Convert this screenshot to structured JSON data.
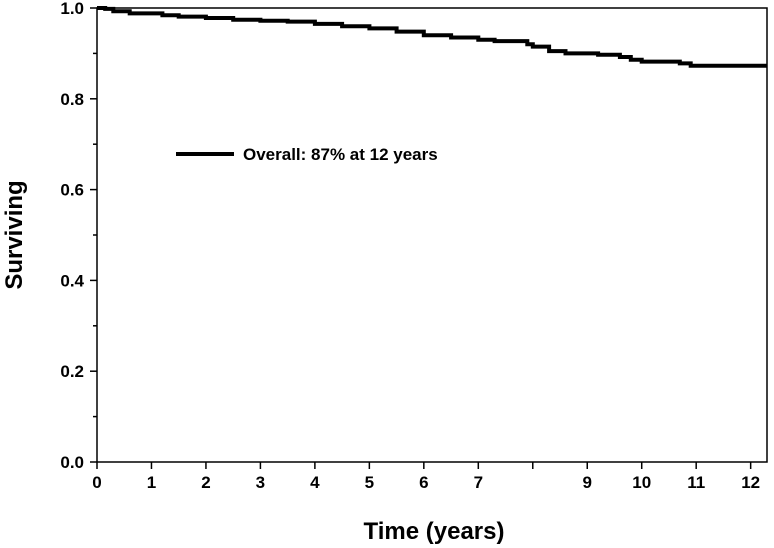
{
  "chart_data": {
    "type": "line",
    "title": "",
    "xlabel": "Time (years)",
    "ylabel": "Surviving",
    "xlim": [
      0,
      12.3
    ],
    "ylim": [
      0,
      1.0
    ],
    "x_ticks": [
      0,
      1,
      2,
      3,
      4,
      5,
      6,
      7,
      8,
      9,
      10,
      11,
      12
    ],
    "x_tick_labels": [
      "0",
      "1",
      "2",
      "3",
      "4",
      "5",
      "6",
      "7",
      "",
      "9",
      "10",
      "11",
      "12"
    ],
    "y_ticks": [
      0.0,
      0.2,
      0.4,
      0.6,
      0.8,
      1.0
    ],
    "y_tick_labels": [
      "0.0",
      "0.2",
      "0.4",
      "0.6",
      "0.8",
      "1.0"
    ],
    "y_minor_ticks": [
      0.1,
      0.3,
      0.5,
      0.7,
      0.9
    ],
    "grid": false,
    "legend_position": "upper-left",
    "series": [
      {
        "name": "Overall: 87% at 12 years",
        "style": "step",
        "color": "#000000",
        "points": [
          [
            0.0,
            1.0
          ],
          [
            0.15,
            0.998
          ],
          [
            0.3,
            0.993
          ],
          [
            0.6,
            0.988
          ],
          [
            1.2,
            0.984
          ],
          [
            1.5,
            0.981
          ],
          [
            2.0,
            0.978
          ],
          [
            2.5,
            0.974
          ],
          [
            3.0,
            0.972
          ],
          [
            3.5,
            0.97
          ],
          [
            4.0,
            0.965
          ],
          [
            4.5,
            0.96
          ],
          [
            5.0,
            0.955
          ],
          [
            5.5,
            0.948
          ],
          [
            6.0,
            0.94
          ],
          [
            6.5,
            0.935
          ],
          [
            7.0,
            0.93
          ],
          [
            7.3,
            0.927
          ],
          [
            7.9,
            0.92
          ],
          [
            8.0,
            0.915
          ],
          [
            8.3,
            0.905
          ],
          [
            8.6,
            0.9
          ],
          [
            9.2,
            0.897
          ],
          [
            9.6,
            0.892
          ],
          [
            9.8,
            0.886
          ],
          [
            10.0,
            0.882
          ],
          [
            10.7,
            0.878
          ],
          [
            10.9,
            0.873
          ],
          [
            12.3,
            0.873
          ]
        ]
      }
    ]
  }
}
